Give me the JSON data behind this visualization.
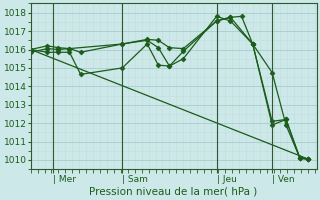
{
  "background_color": "#cde8e8",
  "grid_color_major": "#aacccc",
  "grid_color_minor": "#c4dddd",
  "line_color": "#1a5c1a",
  "ylabel": "Pression niveau de la mer( hPa )",
  "ylim": [
    1009.5,
    1018.5
  ],
  "yticks": [
    1010,
    1011,
    1012,
    1013,
    1014,
    1015,
    1016,
    1017,
    1018
  ],
  "xtick_labels": [
    "| Mer",
    "| Sam",
    "| Jeu",
    "| Ven"
  ],
  "xtick_positions": [
    0.08,
    0.33,
    0.67,
    0.87
  ],
  "series": [
    [
      [
        0.0,
        1016.0
      ],
      [
        0.06,
        1016.2
      ],
      [
        0.1,
        1016.1
      ],
      [
        0.14,
        1016.05
      ],
      [
        0.18,
        1015.85
      ],
      [
        0.33,
        1016.3
      ],
      [
        0.42,
        1016.5
      ],
      [
        0.46,
        1016.1
      ],
      [
        0.5,
        1015.1
      ],
      [
        0.55,
        1015.9
      ],
      [
        0.67,
        1017.55
      ],
      [
        0.72,
        1017.75
      ],
      [
        0.76,
        1017.8
      ],
      [
        0.8,
        1016.3
      ],
      [
        0.87,
        1012.1
      ],
      [
        0.92,
        1012.2
      ],
      [
        0.97,
        1010.1
      ],
      [
        1.0,
        1010.05
      ]
    ],
    [
      [
        0.0,
        1016.0
      ],
      [
        0.06,
        1015.85
      ],
      [
        0.1,
        1015.85
      ],
      [
        0.14,
        1015.85
      ],
      [
        0.18,
        1014.65
      ],
      [
        0.33,
        1015.0
      ],
      [
        0.42,
        1016.3
      ],
      [
        0.46,
        1015.15
      ],
      [
        0.5,
        1015.1
      ],
      [
        0.55,
        1015.5
      ],
      [
        0.67,
        1017.8
      ],
      [
        0.72,
        1017.55
      ],
      [
        0.8,
        1016.3
      ],
      [
        0.87,
        1011.9
      ],
      [
        0.92,
        1012.2
      ],
      [
        0.97,
        1010.1
      ],
      [
        1.0,
        1010.05
      ]
    ],
    [
      [
        0.0,
        1015.85
      ],
      [
        0.06,
        1016.05
      ],
      [
        0.1,
        1016.0
      ],
      [
        0.14,
        1016.05
      ],
      [
        0.33,
        1016.3
      ],
      [
        0.42,
        1016.55
      ],
      [
        0.46,
        1016.5
      ],
      [
        0.5,
        1016.1
      ],
      [
        0.55,
        1016.05
      ],
      [
        0.67,
        1017.55
      ],
      [
        0.72,
        1017.75
      ],
      [
        0.8,
        1016.3
      ],
      [
        0.87,
        1014.75
      ],
      [
        0.92,
        1011.9
      ],
      [
        0.97,
        1010.1
      ],
      [
        1.0,
        1010.05
      ]
    ],
    [
      [
        0.0,
        1016.0
      ],
      [
        1.0,
        1010.05
      ]
    ]
  ],
  "vline_positions": [
    0.08,
    0.33,
    0.67,
    0.87
  ],
  "xmin": 0.0,
  "xmax": 1.03
}
